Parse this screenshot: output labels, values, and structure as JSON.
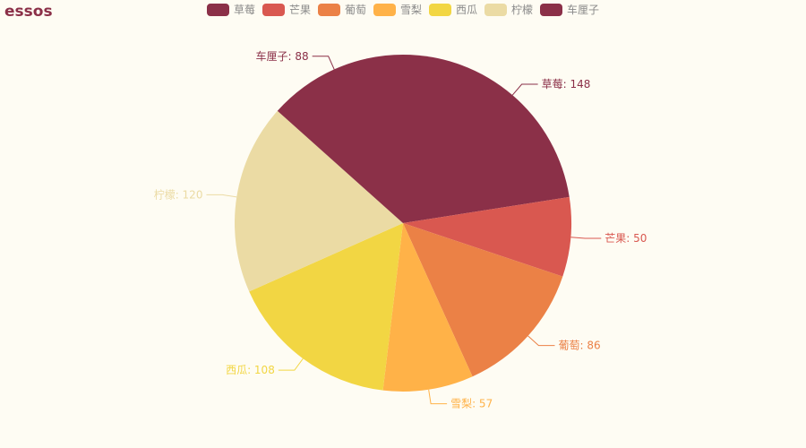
{
  "chart_data": {
    "type": "pie",
    "title": "essos",
    "legend_position": "top-center",
    "label_separator": ": ",
    "slices": [
      {
        "name": "草莓",
        "value": 148,
        "color": "#8b3048"
      },
      {
        "name": "芒果",
        "value": 50,
        "color": "#d95850"
      },
      {
        "name": "葡萄",
        "value": 86,
        "color": "#eb8146"
      },
      {
        "name": "雪梨",
        "value": 57,
        "color": "#ffb248"
      },
      {
        "name": "西瓜",
        "value": 108,
        "color": "#f2d643"
      },
      {
        "name": "柠檬",
        "value": 120,
        "color": "#ebdba4"
      },
      {
        "name": "车厘子",
        "value": 88,
        "color": "#8b3048"
      }
    ]
  }
}
